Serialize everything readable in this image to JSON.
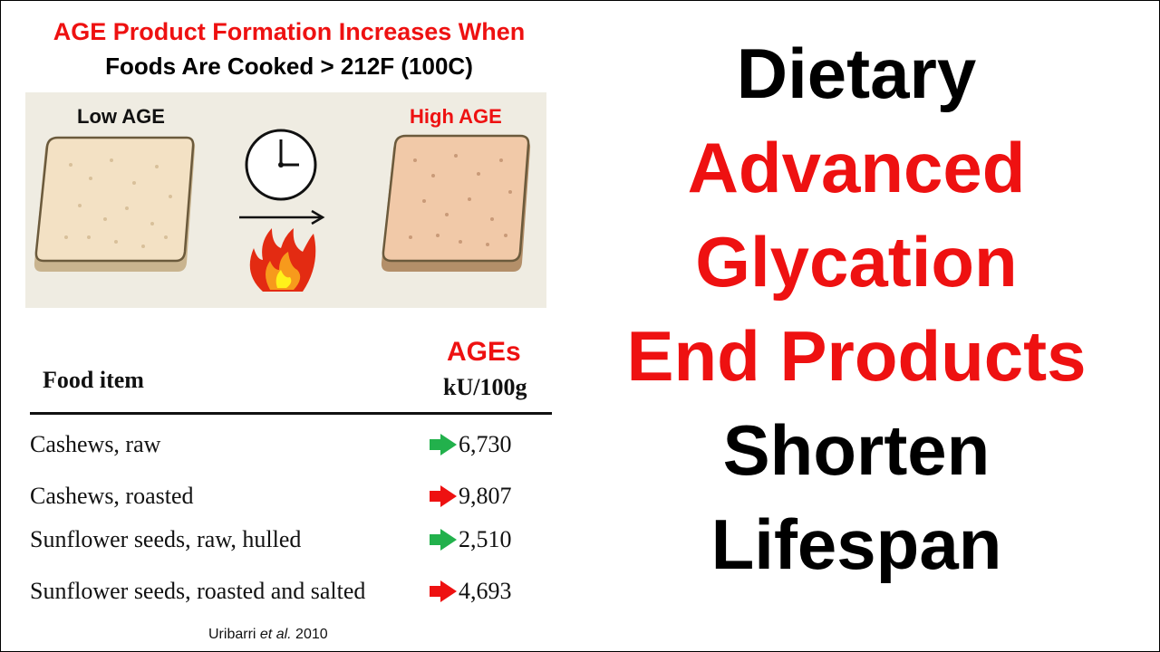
{
  "header": {
    "line1": "AGE Product Formation Increases When",
    "line2": "Foods Are Cooked > 212F (100C)"
  },
  "illustration": {
    "low_label": "Low AGE",
    "high_label": "High AGE",
    "clock_icon": "clock-icon",
    "arrow_icon": "arrow-right-icon",
    "flame_icon": "flame-icon",
    "colors": {
      "accent_red": "#ee1111",
      "panel_bg": "#efece2"
    }
  },
  "table": {
    "header_food": "Food item",
    "header_ages": "AGEs",
    "header_unit": "kU/100g",
    "rows": [
      {
        "food": "Cashews, raw",
        "value": "6,730",
        "arrow_color": "#22b14c",
        "arrow_icon": "green-arrow-icon"
      },
      {
        "food": "Cashews, roasted",
        "value": "9,807",
        "arrow_color": "#ee1111",
        "arrow_icon": "red-arrow-icon"
      },
      {
        "food": "Sunflower seeds, raw, hulled",
        "value": "2,510",
        "arrow_color": "#22b14c",
        "arrow_icon": "green-arrow-icon"
      },
      {
        "food": "Sunflower seeds, roasted and salted",
        "value": "4,693",
        "arrow_color": "#ee1111",
        "arrow_icon": "red-arrow-icon"
      }
    ]
  },
  "source": {
    "author": "Uribarri",
    "etal": "et al.",
    "year": "2010"
  },
  "title": {
    "line1": "Dietary",
    "line2": "Advanced",
    "line3": "Glycation",
    "line4": "End Products",
    "line5": "Shorten",
    "line6": "Lifespan"
  }
}
